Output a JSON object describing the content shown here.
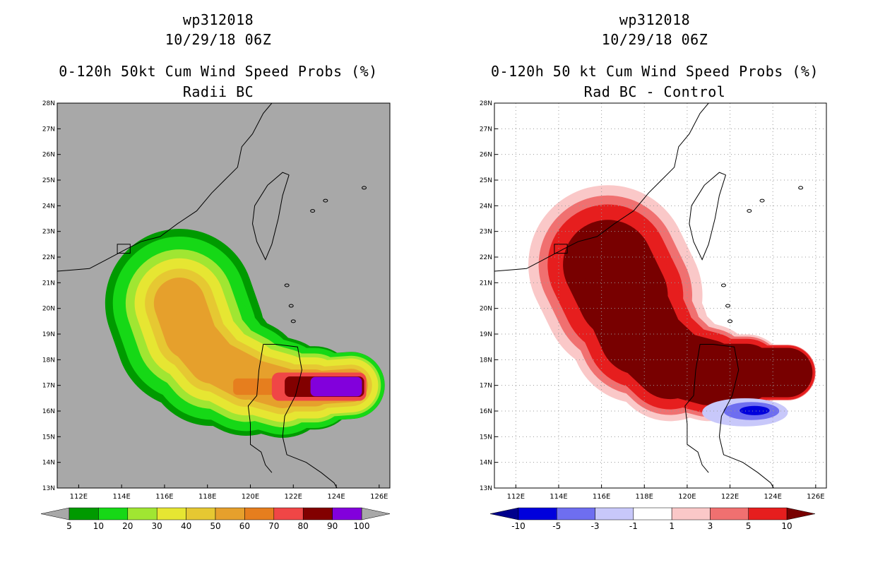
{
  "chart_data": [
    {
      "type": "heatmap",
      "panel": "left",
      "storm_id": "wp312018",
      "datetime": "10/29/18 06Z",
      "title": "0-120h 50kt Cum Wind Speed Probs (%)",
      "subtitle": "Radii BC",
      "units": "%",
      "background_color": "#a8a8a8",
      "grid": false,
      "xlim": [
        111,
        126.5
      ],
      "ylim": [
        13,
        28
      ],
      "x_ticks": [
        {
          "v": 112,
          "label": "112E"
        },
        {
          "v": 114,
          "label": "114E"
        },
        {
          "v": 116,
          "label": "116E"
        },
        {
          "v": 118,
          "label": "118E"
        },
        {
          "v": 120,
          "label": "120E"
        },
        {
          "v": 122,
          "label": "122E"
        },
        {
          "v": 124,
          "label": "124E"
        },
        {
          "v": 126,
          "label": "126E"
        }
      ],
      "y_ticks": [
        {
          "v": 13,
          "label": "13N"
        },
        {
          "v": 14,
          "label": "14N"
        },
        {
          "v": 15,
          "label": "15N"
        },
        {
          "v": 16,
          "label": "16N"
        },
        {
          "v": 17,
          "label": "17N"
        },
        {
          "v": 18,
          "label": "18N"
        },
        {
          "v": 19,
          "label": "19N"
        },
        {
          "v": 20,
          "label": "20N"
        },
        {
          "v": 21,
          "label": "21N"
        },
        {
          "v": 22,
          "label": "22N"
        },
        {
          "v": 23,
          "label": "23N"
        },
        {
          "v": 24,
          "label": "24N"
        },
        {
          "v": 25,
          "label": "25N"
        },
        {
          "v": 26,
          "label": "26N"
        },
        {
          "v": 27,
          "label": "27N"
        },
        {
          "v": 28,
          "label": "28N"
        }
      ],
      "colorbar": {
        "colors": [
          "#009a00",
          "#16d816",
          "#a0e632",
          "#e6e632",
          "#e6c832",
          "#e6a02c",
          "#e67e1e",
          "#f04646",
          "#820000",
          "#8200dc"
        ],
        "labels": [
          "5",
          "10",
          "20",
          "30",
          "40",
          "50",
          "60",
          "70",
          "80",
          "90",
          "100"
        ],
        "arrow_color": "#a8a8a8"
      },
      "levels": [
        {
          "label": "5-10%",
          "value": 5,
          "color": "#009a00",
          "half_width": 2.9,
          "taper": 0.55
        },
        {
          "label": "10-20%",
          "value": 10,
          "color": "#16d816",
          "half_width": 2.6,
          "taper": 0.5
        },
        {
          "label": "20-30%",
          "value": 20,
          "color": "#a0e632",
          "half_width": 2.1,
          "taper": 0.45
        },
        {
          "label": "30-40%",
          "value": 30,
          "color": "#e6e632",
          "half_width": 1.75,
          "taper": 0.4
        },
        {
          "label": "40-50%",
          "value": 40,
          "color": "#e6c832",
          "half_width": 1.35,
          "taper": 0.4
        },
        {
          "label": "50-60%",
          "value": 50,
          "color": "#e6a02c",
          "half_width": 1.0,
          "taper": 0.35
        }
      ],
      "track": [
        [
          116.7,
          20.2
        ],
        [
          117.2,
          19.0
        ],
        [
          118.2,
          18.0
        ],
        [
          119.8,
          17.3
        ],
        [
          121.5,
          16.9
        ],
        [
          123.0,
          16.9
        ],
        [
          124.7,
          17.0
        ]
      ],
      "track_start": 0,
      "high_bands": [
        {
          "label": "60-70%",
          "value": 60,
          "color": "#e67e1e",
          "lon_start": 119.2,
          "lon_end": 121.8,
          "half_width": 0.32
        },
        {
          "label": "70-80%",
          "value": 70,
          "color": "#f04646",
          "lon_start": 121.0,
          "lon_end": 125.4,
          "half_width": 0.55
        },
        {
          "label": "80-90%",
          "value": 80,
          "color": "#820000",
          "lon_start": 121.6,
          "lon_end": 125.3,
          "half_width": 0.4
        },
        {
          "label": "90-100%",
          "value": 90,
          "color": "#8200dc",
          "lon_start": 122.8,
          "lon_end": 125.2,
          "half_width": 0.38
        }
      ]
    },
    {
      "type": "heatmap",
      "panel": "right",
      "storm_id": "wp312018",
      "datetime": "10/29/18 06Z",
      "title": "0-120h 50 kt Cum Wind Speed Probs (%)",
      "subtitle": "Rad BC - Control",
      "units": "%",
      "background_color": "#ffffff",
      "grid": true,
      "xlim": [
        111,
        126.5
      ],
      "ylim": [
        13,
        28
      ],
      "x_ticks": [
        {
          "v": 112,
          "label": "112E"
        },
        {
          "v": 114,
          "label": "114E"
        },
        {
          "v": 116,
          "label": "116E"
        },
        {
          "v": 118,
          "label": "118E"
        },
        {
          "v": 120,
          "label": "120E"
        },
        {
          "v": 122,
          "label": "122E"
        },
        {
          "v": 124,
          "label": "124E"
        },
        {
          "v": 126,
          "label": "126E"
        }
      ],
      "y_ticks": [
        {
          "v": 13,
          "label": "13N"
        },
        {
          "v": 14,
          "label": "14N"
        },
        {
          "v": 15,
          "label": "15N"
        },
        {
          "v": 16,
          "label": "16N"
        },
        {
          "v": 17,
          "label": "17N"
        },
        {
          "v": 18,
          "label": "18N"
        },
        {
          "v": 19,
          "label": "19N"
        },
        {
          "v": 20,
          "label": "20N"
        },
        {
          "v": 21,
          "label": "21N"
        },
        {
          "v": 22,
          "label": "22N"
        },
        {
          "v": 23,
          "label": "23N"
        },
        {
          "v": 24,
          "label": "24N"
        },
        {
          "v": 25,
          "label": "25N"
        },
        {
          "v": 26,
          "label": "26N"
        },
        {
          "v": 27,
          "label": "27N"
        },
        {
          "v": 28,
          "label": "28N"
        }
      ],
      "colorbar": {
        "colors": [
          "#0000dc",
          "#6e6ef0",
          "#c8c8fa",
          "#ffffff",
          "#fac8c8",
          "#f07070",
          "#e61e1e"
        ],
        "labels": [
          "-10",
          "-5",
          "-3",
          "-1",
          "1",
          "3",
          "5",
          "10"
        ],
        "left_arrow_color": "#00008c",
        "right_arrow_color": "#780000"
      },
      "levels": [
        {
          "label": "1-3%",
          "value": 1,
          "color": "#fac8c8",
          "half_width": 3.1,
          "taper": 0.65
        },
        {
          "label": "3-5%",
          "value": 3,
          "color": "#f07070",
          "half_width": 2.7,
          "taper": 0.6
        },
        {
          "label": "5-10%",
          "value": 5,
          "color": "#e61e1e",
          "half_width": 2.35,
          "taper": 0.55
        },
        {
          "label": ">10%",
          "value": 10,
          "color": "#780000",
          "half_width": 1.75,
          "taper": 0.45
        }
      ],
      "track": [
        [
          116.3,
          21.7
        ],
        [
          117.0,
          20.5
        ],
        [
          117.8,
          19.0
        ],
        [
          119.2,
          17.9
        ],
        [
          121.0,
          17.5
        ],
        [
          122.8,
          17.5
        ],
        [
          124.7,
          17.5
        ]
      ],
      "track_start": 0,
      "negative_blobs": [
        {
          "label": "-1 to -3%",
          "value": -1,
          "color": "#c8c8fa",
          "cx": 122.7,
          "cy": 15.95,
          "rx": 2.0,
          "ry": 0.55
        },
        {
          "label": "-3 to -5%",
          "value": -3,
          "color": "#6e6ef0",
          "cx": 123.0,
          "cy": 16.0,
          "rx": 1.3,
          "ry": 0.35
        },
        {
          "label": "-5 to -10%",
          "value": -5,
          "color": "#0000dc",
          "cx": 123.15,
          "cy": 16.02,
          "rx": 0.7,
          "ry": 0.18
        }
      ]
    }
  ],
  "map_features": {
    "coast_color": "#000000",
    "region": "South China Sea",
    "features": [
      "China coast",
      "Taiwan",
      "Luzon",
      "Hong Kong box"
    ]
  }
}
